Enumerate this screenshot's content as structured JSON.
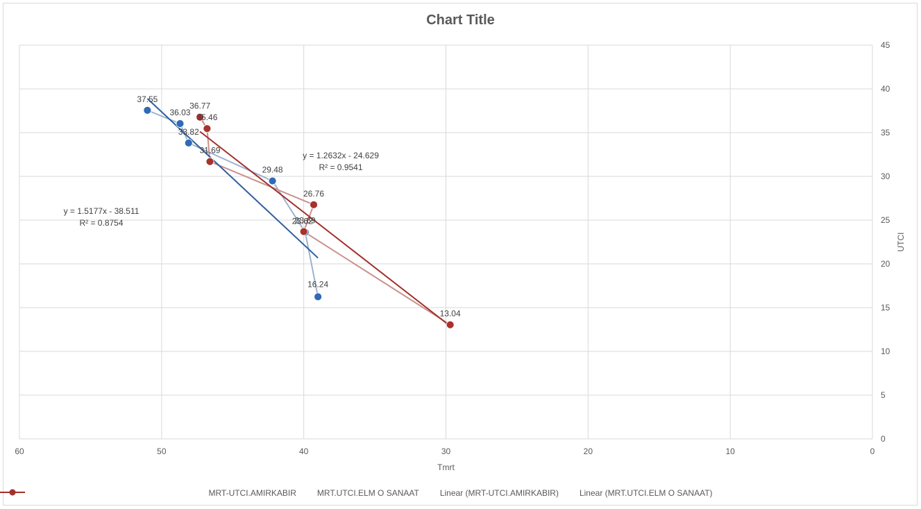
{
  "chart_data": {
    "type": "scatter",
    "title": "Chart Title",
    "xlabel": "Tmrt",
    "ylabel": "UTCI",
    "xlim": [
      60,
      0
    ],
    "ylim": [
      0,
      45
    ],
    "x_reversed": true,
    "y_axis_position": "right",
    "grid": true,
    "legend_position": "bottom",
    "x_ticks": [
      "60",
      "50",
      "40",
      "30",
      "20",
      "10",
      "0"
    ],
    "y_ticks": [
      "0",
      "5",
      "10",
      "15",
      "20",
      "25",
      "30",
      "35",
      "40",
      "45"
    ],
    "series": [
      {
        "name": "MRT-UTCI.AMIRKABIR",
        "color": "#2e5e9e",
        "marker_color": "#2f6bb8",
        "line_color": "#9db3cf",
        "points": [
          {
            "x": 51.0,
            "y": 37.55,
            "label": "37.55"
          },
          {
            "x": 48.7,
            "y": 36.03,
            "label": "36.03"
          },
          {
            "x": 48.1,
            "y": 33.82,
            "label": "33.82"
          },
          {
            "x": 42.2,
            "y": 29.48,
            "label": "29.48"
          },
          {
            "x": 39.9,
            "y": 23.62,
            "label": "23.62"
          },
          {
            "x": 39.0,
            "y": 16.24,
            "label": "16.24"
          }
        ],
        "trendline": {
          "name": "Linear (MRT-UTCI.AMIRKABIR)",
          "equation": "y = 1.5177x - 38.511",
          "r2": "R² = 0.8754",
          "slope": 1.5177,
          "intercept": -38.511,
          "x_range": [
            51.0,
            39.0
          ]
        }
      },
      {
        "name": "MRT.UTCI.ELM O SANAAT",
        "color": "#a0302a",
        "marker_color": "#a8322c",
        "line_color": "#c9908d",
        "points": [
          {
            "x": 47.3,
            "y": 36.77,
            "label": "36.77"
          },
          {
            "x": 46.8,
            "y": 35.46,
            "label": "35.46"
          },
          {
            "x": 46.6,
            "y": 31.69,
            "label": "31.69"
          },
          {
            "x": 39.3,
            "y": 26.76,
            "label": "26.76"
          },
          {
            "x": 40.0,
            "y": 23.69,
            "label": "23.69"
          },
          {
            "x": 29.7,
            "y": 13.04,
            "label": "13.04"
          }
        ],
        "trendline": {
          "name": "Linear (MRT.UTCI.ELM O SANAAT)",
          "equation": "y = 1.2632x - 24.629",
          "r2": "R² = 0.9541",
          "slope": 1.2632,
          "intercept": -24.629,
          "x_range": [
            47.3,
            29.7
          ]
        }
      }
    ]
  }
}
